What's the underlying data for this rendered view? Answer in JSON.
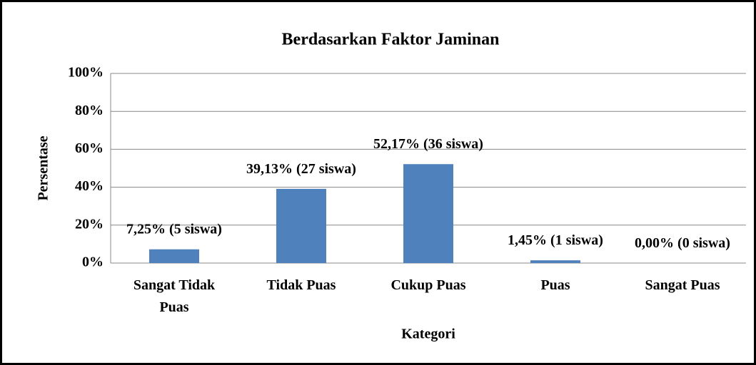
{
  "chart_data": {
    "type": "bar",
    "title": "Berdasarkan Faktor Jaminan",
    "x_label": "Kategori",
    "y_label": "Persentase",
    "categories": [
      "Sangat Tidak Puas",
      "Tidak Puas",
      "Cukup Puas",
      "Puas",
      "Sangat Puas"
    ],
    "values": [
      7.25,
      39.13,
      52.17,
      1.45,
      0
    ],
    "value_labels": [
      "7,25% (5 siswa)",
      "39,13% (27 siswa)",
      "52,17% (36 siswa)",
      "1,45% (1 siswa)",
      "0,00% (0 siswa)"
    ],
    "color": "#4f81bd",
    "ylim": [
      0,
      100
    ],
    "yticks": [
      {
        "value": 0,
        "label": "0%"
      },
      {
        "value": 20,
        "label": "20%"
      },
      {
        "value": 40,
        "label": "40%"
      },
      {
        "value": 60,
        "label": "60%"
      },
      {
        "value": 80,
        "label": "80%"
      },
      {
        "value": 100,
        "label": "100%"
      }
    ],
    "grid": true
  }
}
